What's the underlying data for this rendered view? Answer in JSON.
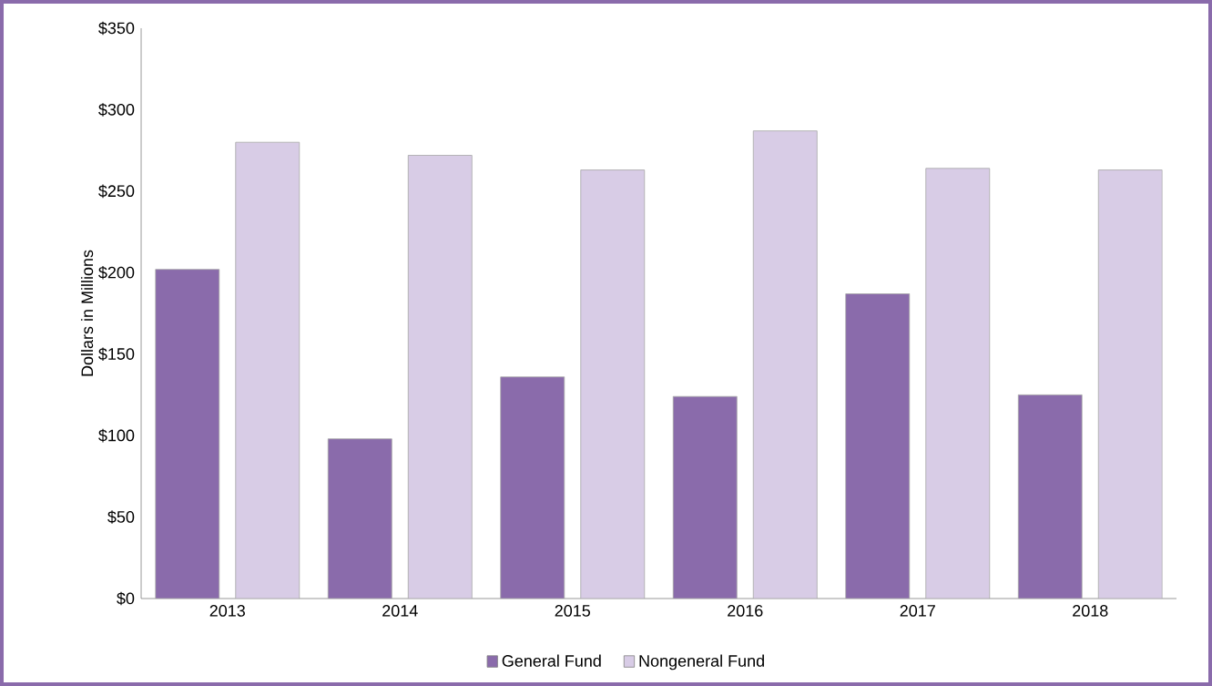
{
  "chart_data": {
    "type": "bar",
    "ylabel": "Dollars in Millions",
    "categories": [
      "2013",
      "2014",
      "2015",
      "2016",
      "2017",
      "2018"
    ],
    "series": [
      {
        "name": "General Fund",
        "color": "#8a6bab",
        "values": [
          202,
          98,
          136,
          124,
          187,
          125
        ]
      },
      {
        "name": "Nongeneral Fund",
        "color": "#d8cce6",
        "values": [
          280,
          272,
          263,
          287,
          264,
          263
        ]
      }
    ],
    "ylim": [
      0,
      350
    ],
    "yticks": [
      {
        "value": 0,
        "label": "$0"
      },
      {
        "value": 50,
        "label": "$50"
      },
      {
        "value": 100,
        "label": "$100"
      },
      {
        "value": 150,
        "label": "$150"
      },
      {
        "value": 200,
        "label": "$200"
      },
      {
        "value": 250,
        "label": "$250"
      },
      {
        "value": 300,
        "label": "$300"
      },
      {
        "value": 350,
        "label": "$350"
      }
    ],
    "grid": false,
    "legend": "bottom"
  }
}
